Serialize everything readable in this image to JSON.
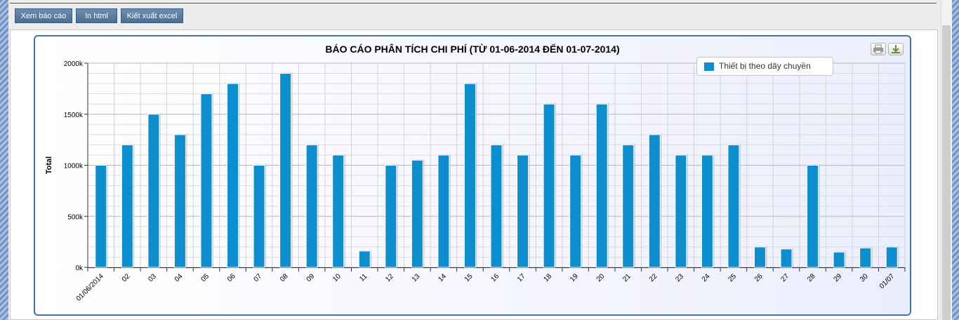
{
  "toolbar": {
    "view_report": "Xem báo cáo",
    "print_html": "In html",
    "export_excel": "Kiết xuất excel"
  },
  "colors": {
    "series": "#0d8ecf",
    "frame": "#4572a7",
    "button": "#5a7ea2"
  },
  "icons": {
    "print": "printer-icon",
    "download": "download-icon"
  },
  "chart_data": {
    "type": "bar",
    "title": "BÁO CÁO PHÂN TÍCH CHI PHÍ (TỪ 01-06-2014 ĐẾN 01-07-2014)",
    "xlabel": "",
    "ylabel": "Total",
    "ylim": [
      0,
      2000000
    ],
    "yticks": [
      {
        "value": 0,
        "label": "0k"
      },
      {
        "value": 500000,
        "label": "500k"
      },
      {
        "value": 1000000,
        "label": "1000k"
      },
      {
        "value": 1500000,
        "label": "1500k"
      },
      {
        "value": 2000000,
        "label": "2000k"
      }
    ],
    "grid": true,
    "legend_position": "top-right",
    "categories": [
      "01/06/2014",
      "02",
      "03",
      "04",
      "05",
      "06",
      "07",
      "08",
      "09",
      "10",
      "11",
      "12",
      "13",
      "14",
      "15",
      "16",
      "17",
      "18",
      "19",
      "20",
      "21",
      "22",
      "23",
      "24",
      "25",
      "26",
      "27",
      "28",
      "29",
      "30",
      "01/07"
    ],
    "series": [
      {
        "name": "Thiết bị theo dây chuyền",
        "values": [
          1000000,
          1200000,
          1500000,
          1300000,
          1700000,
          1800000,
          1000000,
          1900000,
          1200000,
          1100000,
          160000,
          1000000,
          1050000,
          1100000,
          1800000,
          1200000,
          1100000,
          1600000,
          1100000,
          1600000,
          1200000,
          1300000,
          1100000,
          1100000,
          1200000,
          200000,
          180000,
          1000000,
          150000,
          190000,
          200000
        ]
      }
    ]
  }
}
